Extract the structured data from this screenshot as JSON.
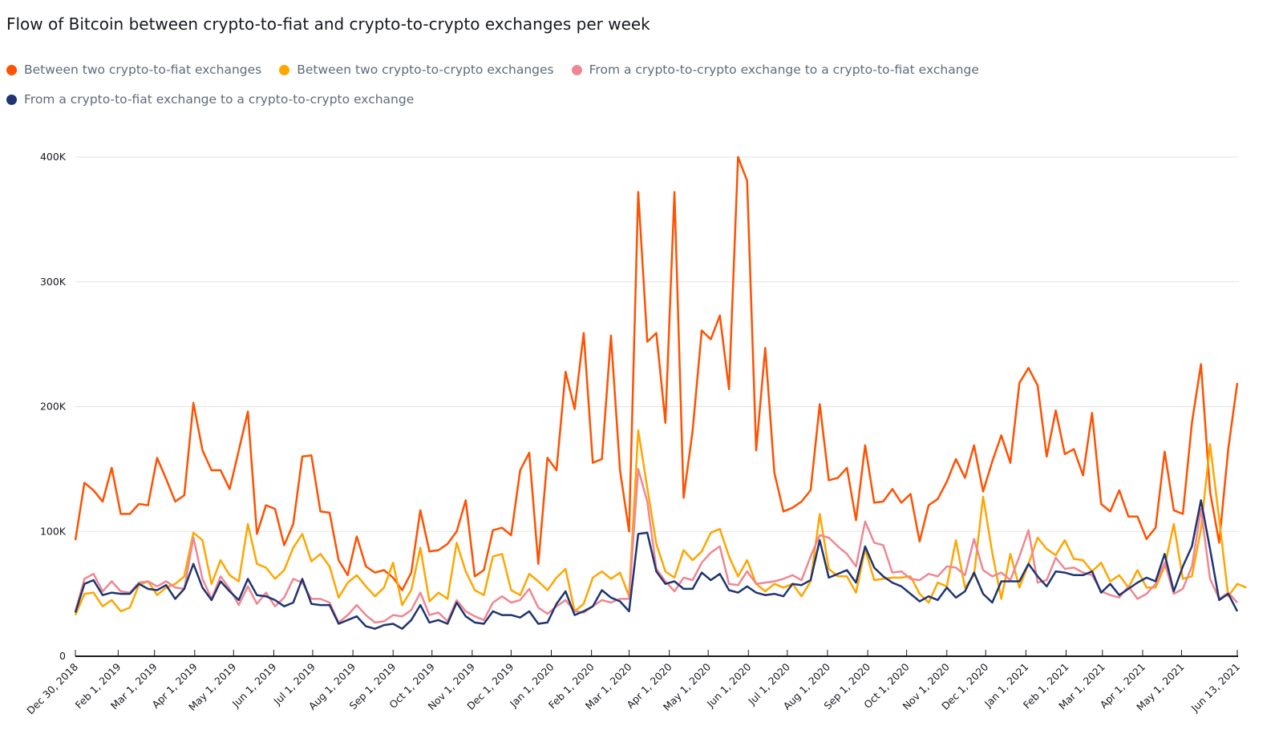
{
  "title": "Flow of Bitcoin between crypto-to-fiat and crypto-to-crypto exchanges per week",
  "chart_data": {
    "type": "line",
    "title": "Flow of Bitcoin between crypto-to-fiat and crypto-to-crypto exchanges per week",
    "xlabel": "",
    "ylabel": "",
    "x_start": "Dec 30, 2018",
    "x_end": "Jun 13, 2021",
    "x_interval": "weekly",
    "ylim": [
      0,
      400000
    ],
    "yticks": [
      0,
      100000,
      200000,
      300000,
      400000
    ],
    "ytick_labels": [
      "0",
      "100K",
      "200K",
      "300K",
      "400K"
    ],
    "xtick_labels": [
      "Dec 30, 2018",
      "Feb 1, 2019",
      "Mar 1, 2019",
      "Apr 1, 2019",
      "May 1, 2019",
      "Jun 1, 2019",
      "Jul 1, 2019",
      "Aug 1, 2019",
      "Sep 1, 2019",
      "Oct 1, 2019",
      "Nov 1, 2019",
      "Dec 1, 2019",
      "Jan 1, 2020",
      "Feb 1, 2020",
      "Mar 1, 2020",
      "Apr 1, 2020",
      "May 1, 2020",
      "Jun 1, 2020",
      "Jul 1, 2020",
      "Aug 1, 2020",
      "Sep 1, 2020",
      "Oct 1, 2020",
      "Nov 1, 2020",
      "Dec 1, 2020",
      "Jan 1, 2021",
      "Feb 1, 2021",
      "Mar 1, 2021",
      "Apr 1, 2021",
      "May 1, 2021",
      "Jun 13, 2021"
    ],
    "xtick_day_offsets": [
      0,
      33,
      61,
      92,
      122,
      153,
      183,
      214,
      245,
      275,
      306,
      336,
      367,
      398,
      427,
      458,
      488,
      519,
      549,
      580,
      611,
      641,
      672,
      702,
      733,
      764,
      792,
      823,
      853,
      896
    ],
    "grid": true,
    "legend_position": "top-left",
    "series": [
      {
        "name": "Between two crypto-to-fiat exchanges",
        "color": "#ff5100",
        "values": [
          93000,
          139000,
          133000,
          124000,
          151000,
          114000,
          114000,
          122000,
          121000,
          159000,
          142000,
          124000,
          129000,
          203000,
          165000,
          149000,
          149000,
          134000,
          165000,
          196000,
          98000,
          121000,
          118000,
          89000,
          106000,
          160000,
          161000,
          116000,
          115000,
          77000,
          65000,
          96000,
          72000,
          67000,
          69000,
          63000,
          53000,
          67000,
          117000,
          84000,
          85000,
          90000,
          100000,
          125000,
          64000,
          69000,
          101000,
          103000,
          97000,
          149000,
          163000,
          74000,
          159000,
          149000,
          228000,
          198000,
          259000,
          155000,
          158000,
          257000,
          149000,
          100000,
          372000,
          252000,
          259000,
          187000,
          372000,
          127000,
          181000,
          261000,
          254000,
          273000,
          214000,
          400000,
          381000,
          165000,
          247000,
          147000,
          116000,
          119000,
          124000,
          133000,
          202000,
          141000,
          143000,
          151000,
          109000,
          169000,
          123000,
          124000,
          134000,
          123000,
          130000,
          92000,
          121000,
          126000,
          140000,
          158000,
          143000,
          169000,
          132000,
          156000,
          177000,
          155000,
          219000,
          231000,
          217000,
          160000,
          197000,
          162000,
          166000,
          145000,
          195000,
          122000,
          116000,
          133000,
          112000,
          112000,
          94000,
          103000,
          164000,
          117000,
          114000,
          187000,
          234000,
          132000,
          91000,
          166000,
          219000
        ]
      },
      {
        "name": "Between two crypto-to-crypto exchanges",
        "color": "#ffa600",
        "values": [
          33000,
          50000,
          51000,
          40000,
          45000,
          36000,
          39000,
          57000,
          60000,
          49000,
          55000,
          58000,
          64000,
          99000,
          93000,
          58000,
          77000,
          65000,
          60000,
          106000,
          74000,
          71000,
          62000,
          69000,
          87000,
          98000,
          76000,
          82000,
          72000,
          47000,
          59000,
          65000,
          56000,
          48000,
          55000,
          75000,
          41000,
          53000,
          87000,
          44000,
          51000,
          46000,
          91000,
          68000,
          53000,
          49000,
          80000,
          82000,
          53000,
          49000,
          66000,
          60000,
          53000,
          63000,
          70000,
          36000,
          42000,
          63000,
          68000,
          62000,
          67000,
          48000,
          181000,
          135000,
          90000,
          68000,
          63000,
          85000,
          77000,
          84000,
          99000,
          102000,
          80000,
          64000,
          77000,
          58000,
          52000,
          58000,
          55000,
          58000,
          48000,
          60000,
          114000,
          70000,
          64000,
          64000,
          51000,
          86000,
          61000,
          62000,
          63000,
          63000,
          64000,
          50000,
          43000,
          59000,
          56000,
          93000,
          55000,
          65000,
          128000,
          83000,
          46000,
          82000,
          55000,
          74000,
          95000,
          86000,
          81000,
          93000,
          78000,
          77000,
          68000,
          75000,
          60000,
          65000,
          55000,
          69000,
          55000,
          55000,
          72000,
          106000,
          62000,
          64000,
          102000,
          170000,
          110000,
          48000,
          58000,
          55000
        ]
      },
      {
        "name": "From a crypto-to-crypto exchange to a crypto-to-fiat exchange",
        "color": "#ef8793",
        "values": [
          36000,
          62000,
          66000,
          52000,
          60000,
          52000,
          51000,
          59000,
          60000,
          56000,
          60000,
          55000,
          54000,
          95000,
          62000,
          46000,
          64000,
          54000,
          41000,
          56000,
          42000,
          51000,
          40000,
          47000,
          62000,
          59000,
          46000,
          46000,
          43000,
          27000,
          33000,
          41000,
          33000,
          27000,
          28000,
          33000,
          32000,
          37000,
          51000,
          33000,
          35000,
          28000,
          45000,
          36000,
          32000,
          29000,
          43000,
          48000,
          43000,
          45000,
          54000,
          39000,
          34000,
          40000,
          45000,
          36000,
          35000,
          40000,
          45000,
          43000,
          46000,
          46000,
          150000,
          124000,
          70000,
          60000,
          52000,
          63000,
          61000,
          75000,
          83000,
          88000,
          58000,
          57000,
          68000,
          58000,
          59000,
          60000,
          62000,
          65000,
          61000,
          80000,
          97000,
          95000,
          88000,
          82000,
          72000,
          108000,
          91000,
          89000,
          67000,
          68000,
          62000,
          61000,
          66000,
          64000,
          72000,
          71000,
          65000,
          94000,
          69000,
          64000,
          67000,
          61000,
          80000,
          101000,
          59000,
          61000,
          79000,
          70000,
          71000,
          67000,
          65000,
          52000,
          49000,
          47000,
          56000,
          46000,
          50000,
          58000,
          75000,
          50000,
          54000,
          72000,
          118000,
          62000,
          46000,
          51000,
          43000
        ]
      },
      {
        "name": "From a crypto-to-fiat exchange to a crypto-to-crypto exchange",
        "color": "#1f3570",
        "values": [
          35000,
          58000,
          61000,
          49000,
          51000,
          50000,
          50000,
          58000,
          54000,
          53000,
          57000,
          46000,
          54000,
          74000,
          55000,
          45000,
          60000,
          52000,
          45000,
          62000,
          49000,
          48000,
          45000,
          40000,
          43000,
          62000,
          42000,
          41000,
          41000,
          26000,
          29000,
          32000,
          24000,
          22000,
          25000,
          26000,
          22000,
          29000,
          41000,
          27000,
          29000,
          26000,
          43000,
          32000,
          27000,
          26000,
          36000,
          33000,
          33000,
          31000,
          36000,
          26000,
          27000,
          42000,
          52000,
          33000,
          36000,
          40000,
          53000,
          47000,
          44000,
          36000,
          98000,
          99000,
          68000,
          58000,
          60000,
          54000,
          54000,
          67000,
          61000,
          66000,
          53000,
          51000,
          56000,
          51000,
          49000,
          50000,
          48000,
          58000,
          57000,
          61000,
          93000,
          63000,
          66000,
          69000,
          59000,
          88000,
          71000,
          64000,
          59000,
          56000,
          50000,
          44000,
          48000,
          45000,
          55000,
          47000,
          52000,
          67000,
          50000,
          43000,
          60000,
          60000,
          60000,
          74000,
          64000,
          56000,
          68000,
          67000,
          65000,
          65000,
          68000,
          51000,
          58000,
          49000,
          54000,
          59000,
          63000,
          60000,
          82000,
          52000,
          72000,
          88000,
          125000,
          86000,
          45000,
          50000,
          36000
        ]
      }
    ]
  }
}
